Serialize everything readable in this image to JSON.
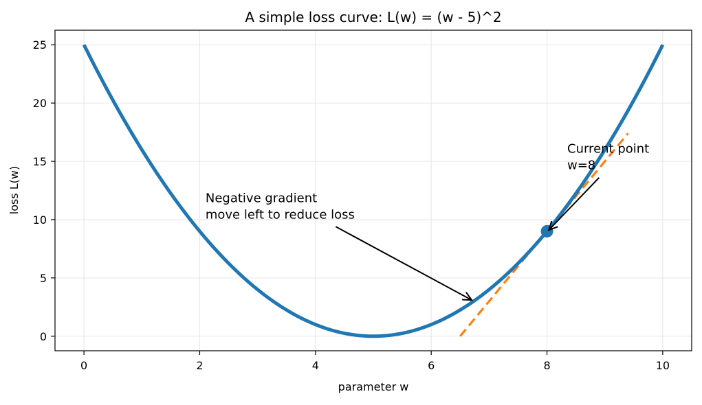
{
  "chart_data": {
    "type": "line",
    "title": "A simple loss curve: L(w) = (w - 5)^2",
    "xlabel": "parameter w",
    "ylabel": "loss L(w)",
    "xlim": [
      -0.5,
      10.5
    ],
    "ylim": [
      -1.25,
      26.25
    ],
    "x_ticks": [
      0,
      2,
      4,
      6,
      8,
      10
    ],
    "y_ticks": [
      0,
      5,
      10,
      15,
      20,
      25
    ],
    "grid": true,
    "colors": {
      "curve": "#1f77b4",
      "tangent": "#ff7f0e",
      "point": "#1f77b4",
      "arrow": "#000000",
      "grid": "#e6e6e6"
    },
    "series": [
      {
        "kind": "curve",
        "x": [
          0,
          0.5,
          1,
          1.5,
          2,
          2.5,
          3,
          3.5,
          4,
          4.5,
          5,
          5.5,
          6,
          6.5,
          7,
          7.5,
          8,
          8.5,
          9,
          9.5,
          10
        ],
        "y": [
          25,
          20.25,
          16,
          12.25,
          9,
          6.25,
          4,
          2.25,
          1,
          0.25,
          0,
          0.25,
          1,
          2.25,
          4,
          6.25,
          9,
          12.25,
          16,
          20.25,
          25
        ]
      },
      {
        "kind": "tangent",
        "x": [
          6.5,
          9.4
        ],
        "y": [
          0,
          17.4
        ]
      }
    ],
    "point": {
      "x": 8,
      "y": 9
    },
    "annotations": [
      {
        "lines": [
          "Current point",
          "w=8"
        ],
        "text_x": 8.35,
        "text_y": 15.75,
        "tail_x": 8.9,
        "tail_y": 13.6,
        "head_x": 8.03,
        "head_y": 9.1
      },
      {
        "lines": [
          "Negative gradient",
          "move left to reduce loss"
        ],
        "text_x": 2.1,
        "text_y": 11.5,
        "tail_x": 4.35,
        "tail_y": 9.4,
        "head_x": 6.7,
        "head_y": 3.1
      }
    ]
  }
}
